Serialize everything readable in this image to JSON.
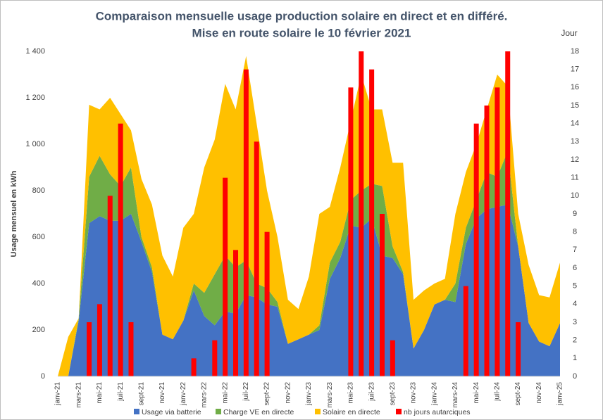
{
  "chart_data": {
    "type": "stacked-area-bar",
    "title": "Comparaison mensuelle usage production solaire en direct et en différé.",
    "subtitle": "Mise en route solaire le 10 février 2021",
    "y_label": "Usage mensuel en kWh",
    "y2_label": "Jour",
    "categories": [
      "janv-21",
      null,
      "mars-21",
      null,
      "mai-21",
      null,
      "juil-21",
      null,
      "sept-21",
      null,
      "nov-21",
      null,
      "janv-22",
      null,
      "mars-22",
      null,
      "mai-22",
      null,
      "juil-22",
      null,
      "sept-22",
      null,
      "nov-22",
      null,
      "janv-23",
      null,
      "mars-23",
      null,
      "mai-23",
      null,
      "juil-23",
      null,
      "sept-23",
      null,
      "nov-23",
      null,
      "janv-24",
      null,
      "mars-24",
      null,
      "mai-24",
      null,
      "juil-24",
      null,
      "sept-24",
      null,
      "nov-24",
      null,
      "janv-25"
    ],
    "series": [
      {
        "name": "Usage via batterie",
        "color": "#4472c4",
        "kind": "area",
        "values": [
          0,
          0,
          240,
          660,
          690,
          670,
          670,
          700,
          580,
          450,
          180,
          160,
          240,
          370,
          260,
          220,
          280,
          270,
          350,
          340,
          310,
          300,
          140,
          160,
          180,
          200,
          420,
          510,
          650,
          640,
          680,
          520,
          510,
          440,
          120,
          200,
          310,
          330,
          320,
          570,
          680,
          720,
          730,
          740,
          560,
          230,
          150,
          130,
          230
        ]
      },
      {
        "name": "Charge VE en directe",
        "color": "#70ad47",
        "kind": "area",
        "values": [
          0,
          0,
          10,
          200,
          260,
          200,
          150,
          200,
          20,
          20,
          0,
          0,
          0,
          30,
          100,
          220,
          240,
          200,
          150,
          60,
          70,
          20,
          0,
          0,
          0,
          20,
          70,
          70,
          110,
          160,
          150,
          300,
          50,
          10,
          0,
          0,
          0,
          0,
          80,
          70,
          80,
          160,
          130,
          230,
          0,
          0,
          0,
          0,
          0
        ]
      },
      {
        "name": "Solaire en directe",
        "color": "#ffc000",
        "kind": "area",
        "values": [
          0,
          170,
          0,
          310,
          200,
          330,
          310,
          160,
          250,
          270,
          340,
          270,
          400,
          300,
          540,
          580,
          740,
          680,
          880,
          690,
          420,
          280,
          190,
          130,
          250,
          480,
          240,
          320,
          340,
          500,
          320,
          330,
          360,
          470,
          210,
          170,
          90,
          90,
          300,
          240,
          240,
          270,
          440,
          280,
          140,
          250,
          200,
          210,
          260
        ]
      },
      {
        "name": "nb jours autarciques",
        "color": "#ff0000",
        "kind": "bar",
        "axis": "y2",
        "values": [
          0,
          0,
          0,
          3,
          4,
          10,
          14,
          3,
          0,
          0,
          0,
          0,
          0,
          1,
          0,
          2,
          11,
          7,
          17,
          13,
          8,
          0,
          0,
          0,
          0,
          0,
          0,
          0,
          16,
          18,
          17,
          9,
          2,
          0,
          0,
          0,
          0,
          0,
          0,
          5,
          14,
          15,
          16,
          18,
          3,
          0,
          0,
          0,
          0
        ]
      }
    ],
    "ylim": [
      0,
      1400
    ],
    "yticks": [
      0,
      200,
      400,
      600,
      800,
      {
        "value": 1000,
        "label": "1 000"
      },
      {
        "value": 1200,
        "label": "1 200"
      },
      {
        "value": 1400,
        "label": "1 400"
      }
    ],
    "y2lim": [
      0,
      18
    ],
    "y2ticks": [
      0,
      1,
      2,
      3,
      4,
      5,
      6,
      7,
      8,
      9,
      10,
      11,
      12,
      13,
      14,
      15,
      16,
      17,
      18
    ],
    "grid": false,
    "legend": "bottom"
  }
}
